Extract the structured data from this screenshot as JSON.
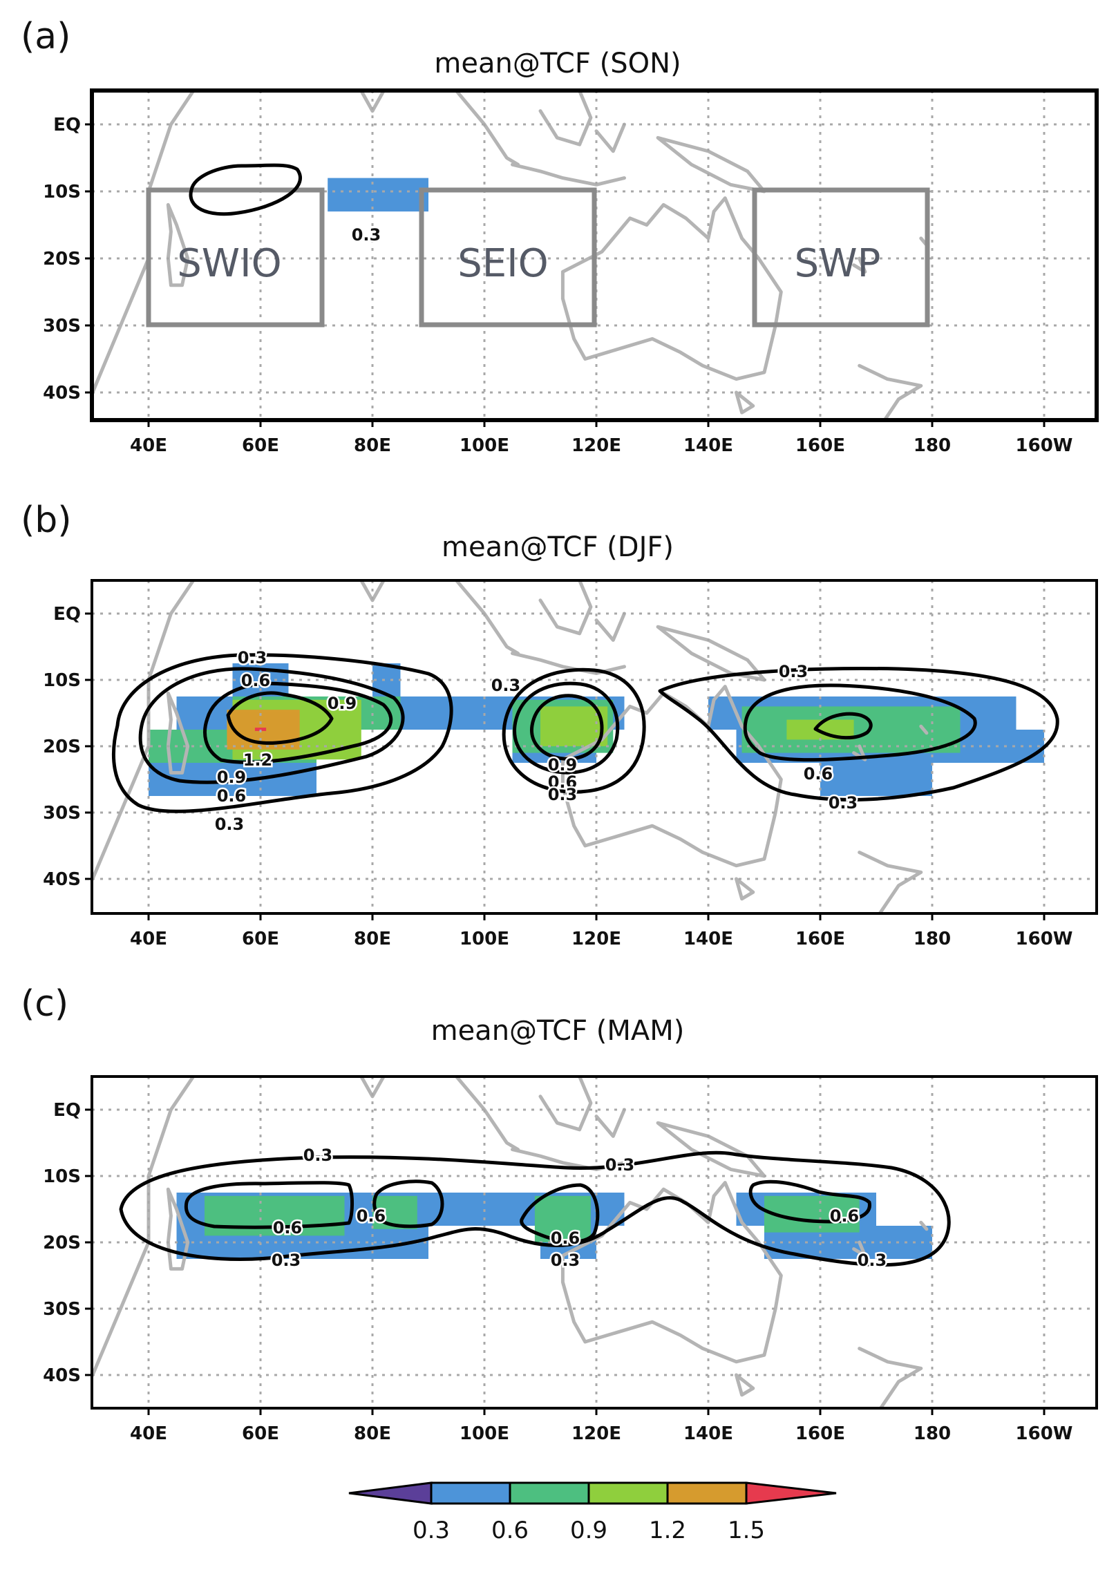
{
  "chart_data": [
    {
      "type": "heatmap",
      "panel": "(a)",
      "title": "mean@TCF (SON)",
      "variable": "mean TCF",
      "season": "SON",
      "xlim": [
        30,
        210
      ],
      "ylim": [
        -45,
        5
      ],
      "x_ticks": [
        "40E",
        "60E",
        "80E",
        "100E",
        "120E",
        "140E",
        "160E",
        "180",
        "160W"
      ],
      "y_ticks": [
        "EQ",
        "10S",
        "20S",
        "30S",
        "40S"
      ],
      "grid": true,
      "cells": [
        {
          "lon": [
            72,
            90
          ],
          "lat": [
            -13,
            -8
          ],
          "level": 0.3
        }
      ],
      "contour_levels": [
        0.3
      ],
      "regions": [
        {
          "name": "SWIO",
          "lon": [
            40,
            71
          ],
          "lat": [
            -30,
            -10
          ]
        },
        {
          "name": "SEIO",
          "lon": [
            89,
            120
          ],
          "lat": [
            -30,
            -10
          ]
        },
        {
          "name": "SWP",
          "lon": [
            150,
            180
          ],
          "lat": [
            -30,
            -10
          ]
        }
      ]
    },
    {
      "type": "heatmap",
      "panel": "(b)",
      "title": "mean@TCF (DJF)",
      "variable": "mean TCF",
      "season": "DJF",
      "xlim": [
        30,
        210
      ],
      "ylim": [
        -45,
        5
      ],
      "x_ticks": [
        "40E",
        "60E",
        "80E",
        "100E",
        "120E",
        "140E",
        "160E",
        "180",
        "160W"
      ],
      "y_ticks": [
        "EQ",
        "10S",
        "20S",
        "30S",
        "40S"
      ],
      "grid": true,
      "cells": [
        {
          "lon": [
            45,
            125
          ],
          "lat": [
            -17.5,
            -12.5
          ],
          "level": 0.3
        },
        {
          "lon": [
            40,
            70
          ],
          "lat": [
            -27.5,
            -17.5
          ],
          "level": 0.3
        },
        {
          "lon": [
            55,
            65
          ],
          "lat": [
            -12.5,
            -7.5
          ],
          "level": 0.3
        },
        {
          "lon": [
            80,
            85
          ],
          "lat": [
            -12.5,
            -7.5
          ],
          "level": 0.3
        },
        {
          "lon": [
            105,
            120
          ],
          "lat": [
            -22.5,
            -17.5
          ],
          "level": 0.3
        },
        {
          "lon": [
            140,
            195
          ],
          "lat": [
            -17.5,
            -12.5
          ],
          "level": 0.3
        },
        {
          "lon": [
            145,
            200
          ],
          "lat": [
            -22.5,
            -17.5
          ],
          "level": 0.3
        },
        {
          "lon": [
            160,
            180
          ],
          "lat": [
            -27.5,
            -22.5
          ],
          "level": 0.3
        },
        {
          "lon": [
            40,
            70
          ],
          "lat": [
            -22.5,
            -17.5
          ],
          "level": 0.6
        },
        {
          "lon": [
            55,
            85
          ],
          "lat": [
            -17.5,
            -12.5
          ],
          "level": 0.6
        },
        {
          "lon": [
            105,
            123
          ],
          "lat": [
            -21,
            -13
          ],
          "level": 0.6
        },
        {
          "lon": [
            146,
            185
          ],
          "lat": [
            -21,
            -14
          ],
          "level": 0.6
        },
        {
          "lon": [
            55,
            78
          ],
          "lat": [
            -22,
            -13
          ],
          "level": 0.9
        },
        {
          "lon": [
            110,
            122
          ],
          "lat": [
            -20,
            -14
          ],
          "level": 0.9
        },
        {
          "lon": [
            154,
            166
          ],
          "lat": [
            -19,
            -16
          ],
          "level": 0.9
        },
        {
          "lon": [
            54,
            67
          ],
          "lat": [
            -20.5,
            -14.5
          ],
          "level": 1.2
        },
        {
          "lon": [
            59,
            61
          ],
          "lat": [
            -17.7,
            -17.2
          ],
          "level": 1.5
        }
      ],
      "contour_levels": [
        0.3,
        0.6,
        0.9,
        1.2
      ]
    },
    {
      "type": "heatmap",
      "panel": "(c)",
      "title": "mean@TCF (MAM)",
      "variable": "mean TCF",
      "season": "MAM",
      "xlim": [
        30,
        210
      ],
      "ylim": [
        -45,
        5
      ],
      "x_ticks": [
        "40E",
        "60E",
        "80E",
        "100E",
        "120E",
        "140E",
        "160E",
        "180",
        "160W"
      ],
      "y_ticks": [
        "EQ",
        "10S",
        "20S",
        "30S",
        "40S"
      ],
      "grid": true,
      "cells": [
        {
          "lon": [
            45,
            125
          ],
          "lat": [
            -17.5,
            -12.5
          ],
          "level": 0.3
        },
        {
          "lon": [
            45,
            90
          ],
          "lat": [
            -22.5,
            -17.5
          ],
          "level": 0.3
        },
        {
          "lon": [
            110,
            120
          ],
          "lat": [
            -22.5,
            -17.5
          ],
          "level": 0.3
        },
        {
          "lon": [
            145,
            170
          ],
          "lat": [
            -17.5,
            -12.5
          ],
          "level": 0.3
        },
        {
          "lon": [
            150,
            180
          ],
          "lat": [
            -22.5,
            -17.5
          ],
          "level": 0.3
        },
        {
          "lon": [
            50,
            75
          ],
          "lat": [
            -19,
            -13
          ],
          "level": 0.6
        },
        {
          "lon": [
            80,
            88
          ],
          "lat": [
            -18,
            -13
          ],
          "level": 0.6
        },
        {
          "lon": [
            109,
            119
          ],
          "lat": [
            -20,
            -13
          ],
          "level": 0.6
        },
        {
          "lon": [
            150,
            167
          ],
          "lat": [
            -18.5,
            -13
          ],
          "level": 0.6
        }
      ],
      "contour_levels": [
        0.3,
        0.6
      ]
    }
  ],
  "panels": [
    {
      "label": "(a)",
      "title": "mean@TCF (SON)",
      "contour_labels": [
        "0.3"
      ],
      "regions": [
        "SWIO",
        "SEIO",
        "SWP"
      ]
    },
    {
      "label": "(b)",
      "title": "mean@TCF (DJF)",
      "contour_labels": [
        "0.3",
        "0.6",
        "0.9",
        "0.3",
        "1.2",
        "0.9",
        "0.6",
        "0.3",
        "0.9",
        "0.6",
        "0.3",
        "0.3",
        "0.6",
        "0.3"
      ]
    },
    {
      "label": "(c)",
      "title": "mean@TCF (MAM)",
      "contour_labels": [
        "0.3",
        "0.3",
        "0.6",
        "0.6",
        "0.6",
        "0.6",
        "0.3",
        "0.3",
        "0.3"
      ]
    }
  ],
  "axes": {
    "x_ticks": [
      "40E",
      "60E",
      "80E",
      "100E",
      "120E",
      "140E",
      "160E",
      "180",
      "160W"
    ],
    "y_ticks": [
      "EQ",
      "10S",
      "20S",
      "30S",
      "40S"
    ]
  },
  "colorbar": {
    "ticks": [
      "0.3",
      "0.6",
      "0.9",
      "1.2",
      "1.5"
    ],
    "colors": [
      "#5b3f99",
      "#4d94d9",
      "#4dbf80",
      "#8fcf3d",
      "#d69b2e",
      "#e63a4e"
    ]
  }
}
